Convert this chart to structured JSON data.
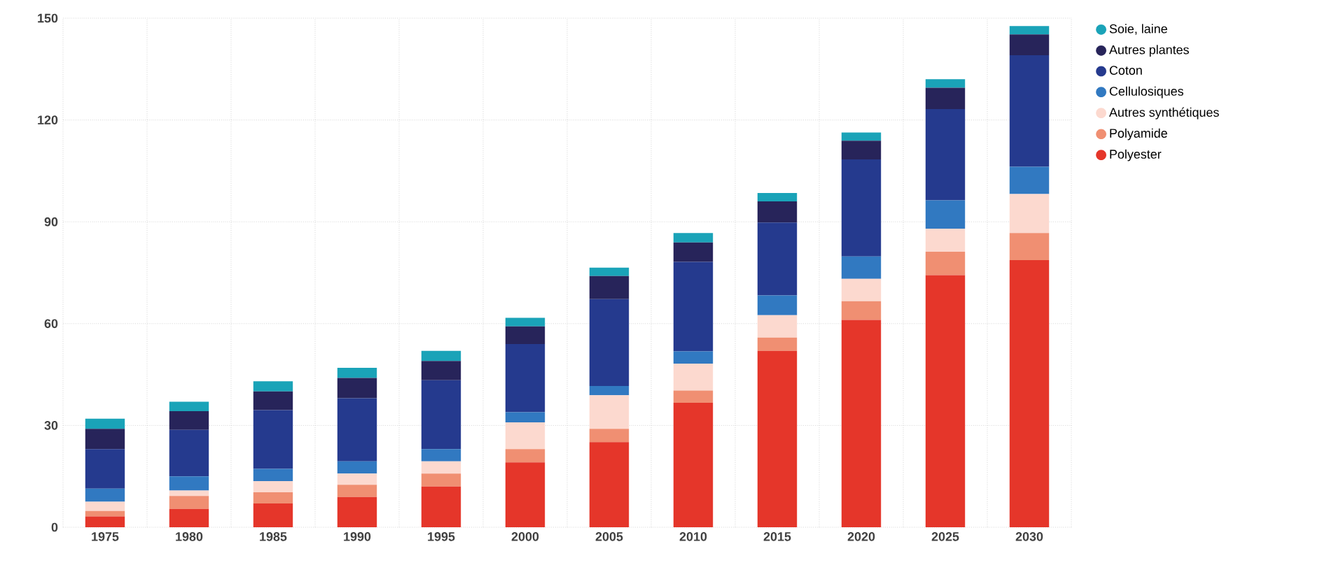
{
  "chart_data": {
    "type": "bar",
    "stacked": true,
    "categories": [
      "1975",
      "1980",
      "1985",
      "1990",
      "1995",
      "2000",
      "2005",
      "2010",
      "2015",
      "2020",
      "2025",
      "2030"
    ],
    "series": [
      {
        "name": "Polyester",
        "color": "#e5362a",
        "values": [
          3.2,
          5.4,
          7,
          8.9,
          12,
          19.1,
          25.1,
          36.7,
          52,
          61.1,
          74.3,
          78.7
        ]
      },
      {
        "name": "Polyamide",
        "color": "#f08f72",
        "values": [
          1.6,
          3.8,
          3.3,
          3.6,
          3.8,
          3.9,
          3.9,
          3.6,
          3.9,
          5.5,
          6.9,
          8
        ]
      },
      {
        "name": "Autres synthétiques",
        "color": "#fcd9cf",
        "values": [
          2.7,
          1.6,
          3.3,
          3.3,
          3.6,
          7.9,
          9.9,
          7.9,
          6.6,
          6.6,
          6.8,
          11.5
        ]
      },
      {
        "name": "Cellulosiques",
        "color": "#3179c1",
        "values": [
          3.9,
          4.2,
          3.6,
          3.6,
          3.6,
          3,
          2.7,
          3.6,
          5.8,
          6.6,
          8.3,
          8
        ]
      },
      {
        "name": "Coton",
        "color": "#253a8e",
        "values": [
          11.6,
          13.7,
          17.3,
          18.6,
          20.3,
          20.1,
          25.6,
          26.4,
          21.5,
          28.6,
          26.9,
          32.9
        ]
      },
      {
        "name": "Autres plantes",
        "color": "#27245a",
        "values": [
          6,
          5.5,
          5.5,
          6,
          5.7,
          5.2,
          6.8,
          5.7,
          6.2,
          5.5,
          6.3,
          6.1
        ]
      },
      {
        "name": "Soie, laine",
        "color": "#1aa3b8",
        "values": [
          3,
          2.8,
          3,
          3,
          3,
          2.5,
          2.5,
          2.8,
          2.5,
          2.4,
          2.5,
          2.5
        ]
      }
    ],
    "ylim": [
      0,
      150
    ],
    "yticks": [
      0,
      30,
      60,
      90,
      120,
      150
    ],
    "grid": true,
    "legend": "right"
  }
}
